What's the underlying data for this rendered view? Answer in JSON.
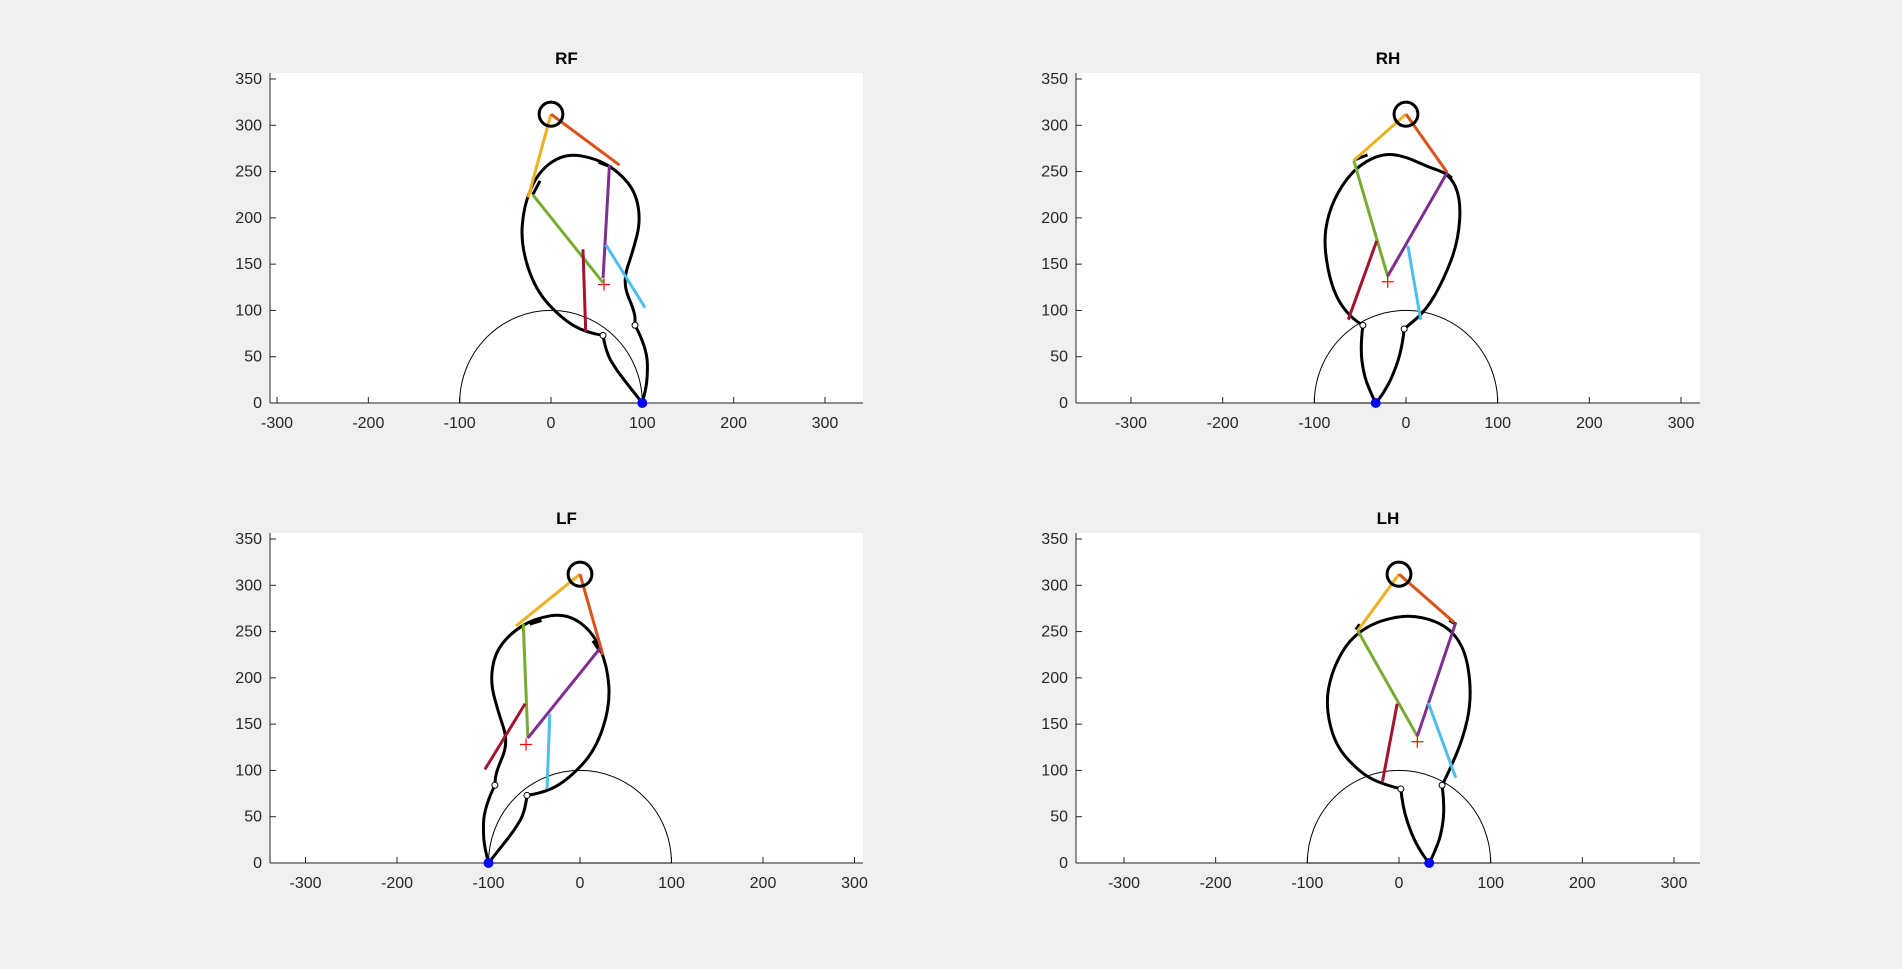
{
  "figure": {
    "background": "#f0f0f0"
  },
  "colors": {
    "yellow": "#EDB120",
    "orange": "#D95319",
    "green": "#77AC30",
    "purple": "#7E2F8E",
    "cyan": "#4DBEEE",
    "maroon": "#A2142F",
    "black": "#000000",
    "foot": "#0000FF",
    "marker": "#FF0000"
  },
  "chart_data": [
    {
      "type": "line",
      "title": "RF",
      "xlim": [
        -300,
        300
      ],
      "ylim": [
        0,
        350
      ],
      "xticks": [
        -300,
        -200,
        -100,
        0,
        100,
        200,
        300
      ],
      "yticks": [
        0,
        50,
        100,
        150,
        200,
        250,
        300,
        350
      ],
      "hip_circle": {
        "center": [
          0,
          312
        ],
        "radius": 13
      },
      "reach_arc": {
        "center": [
          0,
          0
        ],
        "radius": 100
      },
      "foot_point": [
        100,
        0
      ],
      "com_marker": [
        58,
        128
      ],
      "joint_points": [
        [
          57,
          73
        ],
        [
          92,
          84
        ]
      ],
      "leg_outline": [
        [
          [
            57,
            73
          ],
          [
            38,
            76
          ],
          [
            12,
            91
          ],
          [
            -17,
            122
          ],
          [
            -33,
            170
          ],
          [
            -30,
            213
          ],
          [
            -14,
            250
          ],
          [
            15,
            270
          ],
          [
            50,
            264
          ],
          [
            75,
            249
          ],
          [
            93,
            227
          ],
          [
            98,
            196
          ],
          [
            90,
            165
          ],
          [
            78,
            130
          ],
          [
            92,
            98
          ],
          [
            92,
            84
          ]
        ],
        [
          [
            92,
            84
          ],
          [
            105,
            60
          ],
          [
            106,
            25
          ],
          [
            100,
            0
          ]
        ],
        [
          [
            57,
            73
          ],
          [
            60,
            55
          ],
          [
            72,
            35
          ],
          [
            88,
            15
          ],
          [
            100,
            0
          ]
        ]
      ],
      "thick_ticks": [
        [
          [
            -12,
            240
          ],
          [
            -20,
            225
          ]
        ],
        [
          [
            52,
            260
          ],
          [
            66,
            255
          ]
        ]
      ],
      "series": [
        {
          "color": "yellow",
          "points": [
            [
              0,
              312
            ],
            [
              -25,
              222
            ]
          ]
        },
        {
          "color": "orange",
          "points": [
            [
              0,
              312
            ],
            [
              75,
              257
            ]
          ]
        },
        {
          "color": "green",
          "points": [
            [
              -20,
              225
            ],
            [
              57,
              130
            ]
          ]
        },
        {
          "color": "purple",
          "points": [
            [
              64,
              257
            ],
            [
              57,
              135
            ]
          ]
        },
        {
          "color": "cyan",
          "points": [
            [
              60,
              171
            ],
            [
              103,
              103
            ]
          ]
        },
        {
          "color": "maroon",
          "points": [
            [
              35,
              166
            ],
            [
              38,
              77
            ]
          ]
        }
      ]
    },
    {
      "type": "line",
      "title": "RH",
      "xlim": [
        -300,
        300
      ],
      "ylim": [
        0,
        350
      ],
      "xticks": [
        -300,
        -200,
        -100,
        0,
        100,
        200,
        300
      ],
      "yticks": [
        0,
        50,
        100,
        150,
        200,
        250,
        300,
        350
      ],
      "hip_circle": {
        "center": [
          0,
          312
        ],
        "radius": 13
      },
      "reach_arc": {
        "center": [
          0,
          0
        ],
        "radius": 100
      },
      "foot_point": [
        -33,
        0
      ],
      "com_marker": [
        -20,
        131
      ],
      "joint_points": [
        [
          -47,
          84
        ],
        [
          -2,
          80
        ]
      ],
      "leg_outline": [
        [
          [
            -47,
            84
          ],
          [
            -60,
            91
          ],
          [
            -80,
            120
          ],
          [
            -90,
            170
          ],
          [
            -85,
            205
          ],
          [
            -70,
            236
          ],
          [
            -50,
            258
          ],
          [
            -24,
            270
          ],
          [
            0,
            266
          ],
          [
            24,
            255
          ],
          [
            48,
            247
          ],
          [
            60,
            220
          ],
          [
            57,
            175
          ],
          [
            42,
            135
          ],
          [
            22,
            100
          ],
          [
            -2,
            80
          ]
        ],
        [
          [
            -47,
            84
          ],
          [
            -50,
            60
          ],
          [
            -46,
            30
          ],
          [
            -38,
            10
          ],
          [
            -33,
            0
          ]
        ],
        [
          [
            -2,
            80
          ],
          [
            -4,
            60
          ],
          [
            -14,
            30
          ],
          [
            -25,
            10
          ],
          [
            -33,
            0
          ]
        ]
      ],
      "thick_ticks": [
        [
          [
            -55,
            263
          ],
          [
            -42,
            268
          ]
        ],
        [
          [
            44,
            248
          ],
          [
            50,
            243
          ]
        ]
      ],
      "series": [
        {
          "color": "yellow",
          "points": [
            [
              0,
              312
            ],
            [
              -57,
              262
            ]
          ]
        },
        {
          "color": "orange",
          "points": [
            [
              0,
              312
            ],
            [
              45,
              249
            ]
          ]
        },
        {
          "color": "green",
          "points": [
            [
              -57,
              262
            ],
            [
              -20,
              137
            ]
          ]
        },
        {
          "color": "purple",
          "points": [
            [
              -20,
              137
            ],
            [
              45,
              249
            ]
          ]
        },
        {
          "color": "cyan",
          "points": [
            [
              2,
              170
            ],
            [
              16,
              90
            ]
          ]
        },
        {
          "color": "maroon",
          "points": [
            [
              -32,
              175
            ],
            [
              -63,
              90
            ]
          ]
        }
      ]
    },
    {
      "type": "line",
      "title": "LF",
      "xlim": [
        -300,
        300
      ],
      "ylim": [
        0,
        350
      ],
      "xticks": [
        -300,
        -200,
        -100,
        0,
        100,
        200,
        300
      ],
      "yticks": [
        0,
        50,
        100,
        150,
        200,
        250,
        300,
        350
      ],
      "hip_circle": {
        "center": [
          0,
          312
        ],
        "radius": 13
      },
      "reach_arc": {
        "center": [
          0,
          0
        ],
        "radius": 100
      },
      "foot_point": [
        -100,
        0
      ],
      "com_marker": [
        -59,
        128
      ],
      "joint_points": [
        [
          -93,
          84
        ],
        [
          -58,
          73
        ]
      ],
      "leg_outline": [
        [
          [
            -58,
            73
          ],
          [
            -38,
            76
          ],
          [
            -12,
            91
          ],
          [
            17,
            122
          ],
          [
            33,
            170
          ],
          [
            30,
            213
          ],
          [
            14,
            250
          ],
          [
            -15,
            270
          ],
          [
            -50,
            264
          ],
          [
            -75,
            249
          ],
          [
            -93,
            227
          ],
          [
            -98,
            196
          ],
          [
            -90,
            165
          ],
          [
            -78,
            130
          ],
          [
            -92,
            98
          ],
          [
            -93,
            84
          ]
        ],
        [
          [
            -93,
            84
          ],
          [
            -105,
            60
          ],
          [
            -106,
            25
          ],
          [
            -100,
            0
          ]
        ],
        [
          [
            -58,
            73
          ],
          [
            -60,
            55
          ],
          [
            -72,
            35
          ],
          [
            -88,
            15
          ],
          [
            -100,
            0
          ]
        ]
      ],
      "thick_ticks": [
        [
          [
            -55,
            258
          ],
          [
            -42,
            262
          ]
        ],
        [
          [
            14,
            240
          ],
          [
            22,
            228
          ]
        ]
      ],
      "series": [
        {
          "color": "yellow",
          "points": [
            [
              0,
              312
            ],
            [
              -70,
              256
            ]
          ]
        },
        {
          "color": "orange",
          "points": [
            [
              0,
              312
            ],
            [
              25,
              225
            ]
          ]
        },
        {
          "color": "green",
          "points": [
            [
              -62,
              258
            ],
            [
              -57,
              135
            ]
          ]
        },
        {
          "color": "purple",
          "points": [
            [
              22,
              232
            ],
            [
              -57,
              135
            ]
          ]
        },
        {
          "color": "cyan",
          "points": [
            [
              -33,
              161
            ],
            [
              -36,
              80
            ]
          ]
        },
        {
          "color": "maroon",
          "points": [
            [
              -60,
              172
            ],
            [
              -104,
              101
            ]
          ]
        }
      ]
    },
    {
      "type": "line",
      "title": "LH",
      "xlim": [
        -300,
        300
      ],
      "ylim": [
        0,
        350
      ],
      "xticks": [
        -300,
        -200,
        -100,
        0,
        100,
        200,
        300
      ],
      "yticks": [
        0,
        50,
        100,
        150,
        200,
        250,
        300,
        350
      ],
      "hip_circle": {
        "center": [
          0,
          312
        ],
        "radius": 13
      },
      "reach_arc": {
        "center": [
          0,
          0
        ],
        "radius": 100
      },
      "foot_point": [
        33,
        0
      ],
      "com_marker": [
        20,
        131
      ],
      "joint_points": [
        [
          2,
          80
        ],
        [
          47,
          84
        ]
      ],
      "leg_outline": [
        [
          [
            2,
            80
          ],
          [
            -22,
            86
          ],
          [
            -45,
            100
          ],
          [
            -70,
            128
          ],
          [
            -80,
            170
          ],
          [
            -74,
            205
          ],
          [
            -58,
            236
          ],
          [
            -40,
            252
          ],
          [
            -20,
            262
          ],
          [
            10,
            268
          ],
          [
            40,
            262
          ],
          [
            62,
            247
          ],
          [
            75,
            220
          ],
          [
            79,
            175
          ],
          [
            70,
            135
          ],
          [
            55,
            100
          ],
          [
            47,
            84
          ]
        ],
        [
          [
            47,
            84
          ],
          [
            50,
            60
          ],
          [
            46,
            30
          ],
          [
            38,
            10
          ],
          [
            33,
            0
          ]
        ],
        [
          [
            2,
            80
          ],
          [
            4,
            60
          ],
          [
            14,
            30
          ],
          [
            25,
            10
          ],
          [
            33,
            0
          ]
        ]
      ],
      "thick_ticks": [
        [
          [
            -47,
            252
          ],
          [
            -43,
            258
          ]
        ],
        [
          [
            55,
            262
          ],
          [
            62,
            258
          ]
        ]
      ],
      "series": [
        {
          "color": "yellow",
          "points": [
            [
              0,
              312
            ],
            [
              -45,
              251
            ]
          ]
        },
        {
          "color": "orange",
          "points": [
            [
              0,
              312
            ],
            [
              60,
              260
            ]
          ]
        },
        {
          "color": "green",
          "points": [
            [
              -45,
              251
            ],
            [
              20,
              137
            ]
          ]
        },
        {
          "color": "purple",
          "points": [
            [
              20,
              137
            ],
            [
              62,
              260
            ]
          ]
        },
        {
          "color": "cyan",
          "points": [
            [
              32,
              173
            ],
            [
              62,
              92
            ]
          ]
        },
        {
          "color": "maroon",
          "points": [
            [
              -2,
              172
            ],
            [
              -18,
              88
            ]
          ]
        }
      ]
    }
  ]
}
